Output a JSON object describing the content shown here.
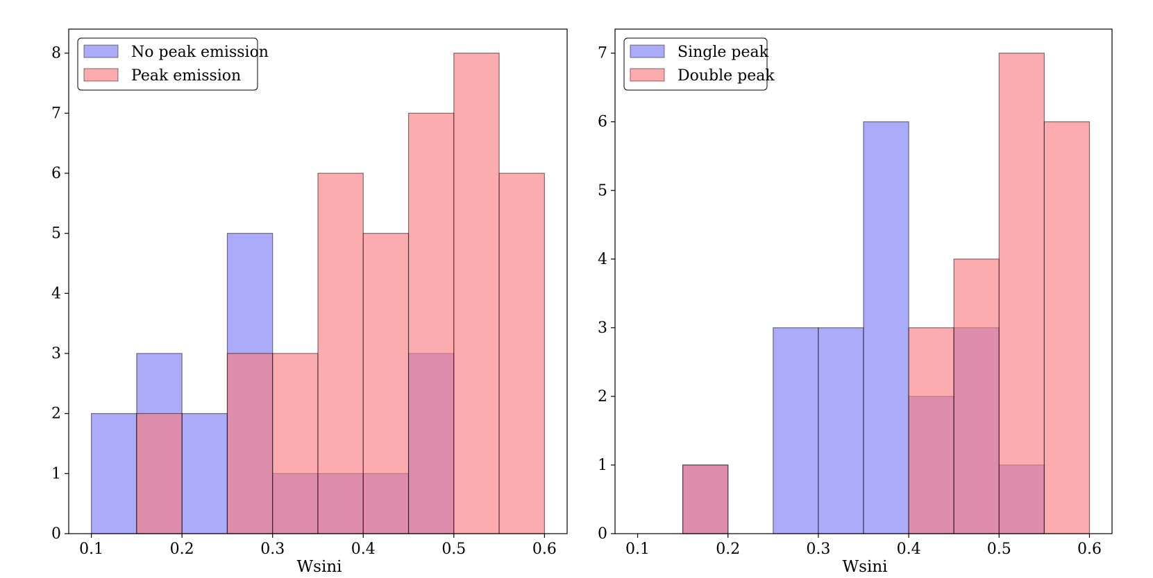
{
  "chart_data": [
    {
      "type": "histogram",
      "xlabel": "Wsini",
      "ylabel": "",
      "xlim": [
        0.075,
        0.625
      ],
      "ylim": [
        0,
        8.4
      ],
      "xticks": [
        0.1,
        0.2,
        0.3,
        0.4,
        0.5,
        0.6
      ],
      "xtick_labels": [
        "0.1",
        "0.2",
        "0.3",
        "0.4",
        "0.5",
        "0.6"
      ],
      "yticks": [
        0,
        1,
        2,
        3,
        4,
        5,
        6,
        7,
        8
      ],
      "ytick_labels": [
        "0",
        "1",
        "2",
        "3",
        "4",
        "5",
        "6",
        "7",
        "8"
      ],
      "bin_edges": [
        0.1,
        0.15,
        0.2,
        0.25,
        0.3,
        0.35,
        0.4,
        0.45,
        0.5,
        0.55,
        0.6
      ],
      "legend_position": "top-left",
      "series": [
        {
          "name": "No peak emission",
          "color": "#7b7bf5",
          "values": [
            2,
            3,
            2,
            5,
            1,
            1,
            1,
            3,
            0,
            0
          ]
        },
        {
          "name": "Peak emission",
          "color": "#fb7b80",
          "values": [
            0,
            2,
            0,
            3,
            3,
            6,
            5,
            7,
            8,
            6
          ]
        }
      ]
    },
    {
      "type": "histogram",
      "xlabel": "Wsini",
      "ylabel": "",
      "xlim": [
        0.075,
        0.625
      ],
      "ylim": [
        0,
        7.35
      ],
      "xticks": [
        0.1,
        0.2,
        0.3,
        0.4,
        0.5,
        0.6
      ],
      "xtick_labels": [
        "0.1",
        "0.2",
        "0.3",
        "0.4",
        "0.5",
        "0.6"
      ],
      "yticks": [
        0,
        1,
        2,
        3,
        4,
        5,
        6,
        7
      ],
      "ytick_labels": [
        "0",
        "1",
        "2",
        "3",
        "4",
        "5",
        "6",
        "7"
      ],
      "bin_edges": [
        0.1,
        0.15,
        0.2,
        0.25,
        0.3,
        0.35,
        0.4,
        0.45,
        0.5,
        0.55,
        0.6
      ],
      "legend_position": "top-left",
      "series": [
        {
          "name": "Single peak",
          "color": "#7b7bf5",
          "values": [
            0,
            1,
            0,
            3,
            3,
            6,
            2,
            3,
            1,
            0
          ]
        },
        {
          "name": "Double peak",
          "color": "#fb7b80",
          "values": [
            0,
            1,
            0,
            0,
            0,
            0,
            3,
            4,
            7,
            6
          ]
        }
      ]
    }
  ]
}
